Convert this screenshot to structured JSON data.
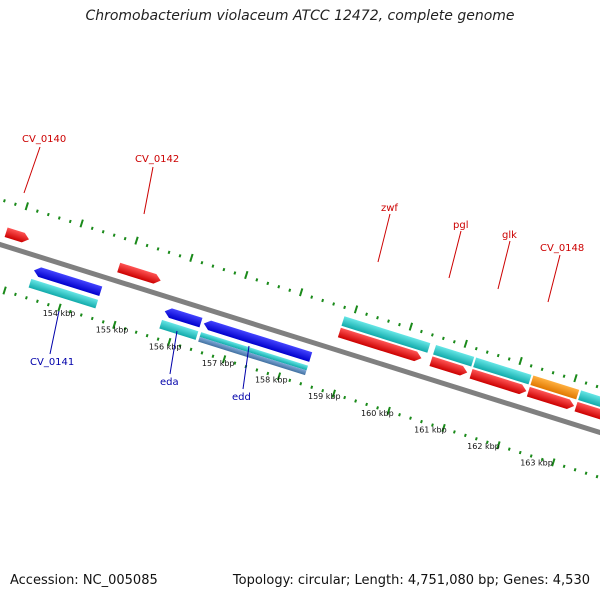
{
  "title": "Chromobacterium violaceum ATCC 12472, complete genome",
  "footer": {
    "accession": "Accession: NC_005085",
    "summary": "Topology: circular; Length: 4,751,080 bp; Genes: 4,530"
  },
  "colors": {
    "backbone": "#808080",
    "forward_gene": "#ee1111",
    "reverse_gene": "#1111ee",
    "cds": "#22cccc",
    "orange_feature": "#f39410",
    "steelblue_feature": "#5b8fbf",
    "dots": "#1a8a1a",
    "label_top": "#cc0000",
    "label_bottom": "#0000aa"
  },
  "ticks": [
    "154 kbp",
    "155 kbp",
    "156 kbp",
    "157 kbp",
    "158 kbp",
    "159 kbp",
    "160 kbp",
    "161 kbp",
    "162 kbp",
    "163 kbp"
  ],
  "labels_top": [
    "CV_0140",
    "CV_0142",
    "zwf",
    "pgl",
    "glk",
    "CV_0148"
  ],
  "labels_bottom": [
    "CV_0141",
    "eda",
    "edd"
  ]
}
